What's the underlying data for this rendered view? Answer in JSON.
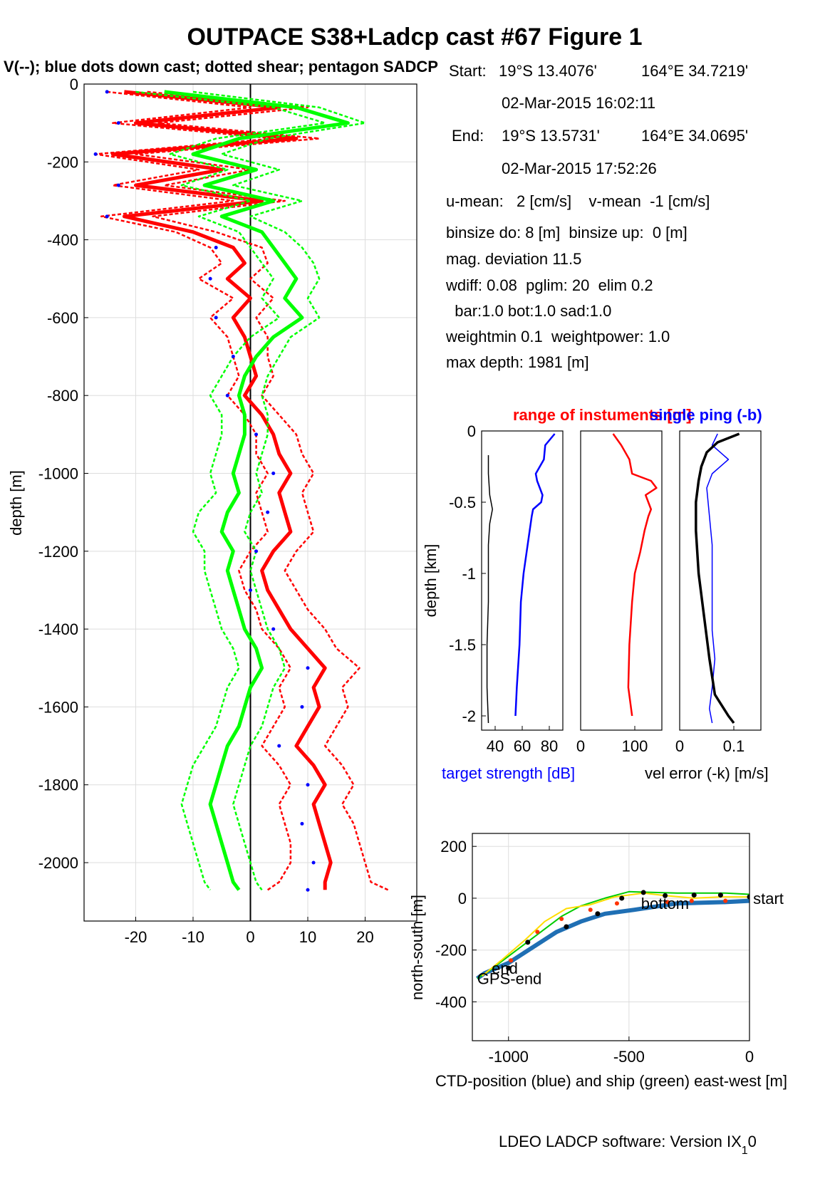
{
  "title": "OUTPACE S38+Ladcp cast #67  Figure 1",
  "subtitle": "V(--); blue dots down cast; dotted shear; pentagon SADCP",
  "info": {
    "start_label": "Start:",
    "start_lat": "19°S 13.4076'",
    "start_lon": "164°E 34.7219'",
    "start_time": "02-Mar-2015 16:02:11",
    "end_label": "End:",
    "end_lat": "19°S 13.5731'",
    "end_lon": "164°E 34.0695'",
    "end_time": "02-Mar-2015 17:52:26",
    "u_mean": "u-mean:   2 [cm/s]    v-mean  -1 [cm/s]",
    "binsize": "binsize do: 8 [m]  binsize up:  0 [m]",
    "mag_dev": "mag. deviation 11.5",
    "wdiff": "wdiff: 0.08  pglim: 20  elim 0.2",
    "bar": "  bar:1.0 bot:1.0 sad:1.0",
    "weight": "weightmin 0.1  weightpower: 1.0",
    "max_depth": "max depth: 1981 [m]"
  },
  "footer": {
    "text": "LDEO LADCP software: Version IX",
    "sub": "1",
    "tail": "0"
  },
  "colors": {
    "u": "#ff0000",
    "v": "#00ff00",
    "blue": "#0000ff",
    "ship": "#00cc00",
    "ctd": "#1f6fb4",
    "yellow": "#ffdd00"
  },
  "chart_data": [
    {
      "type": "line",
      "name": "velocity-profile",
      "ylabel": "depth [m]",
      "xlabel": "",
      "xlim": [
        -29,
        29
      ],
      "ylim": [
        -2150,
        0
      ],
      "xticks": [
        "-20",
        "-10",
        "0",
        "10",
        "20"
      ],
      "xtick_values": [
        -20,
        -10,
        0,
        10,
        20
      ],
      "yticks": [
        "0",
        "-200",
        "-400",
        "-600",
        "-800",
        "-1000",
        "-1200",
        "-1400",
        "-1600",
        "-1800",
        "-2000"
      ],
      "ytick_values": [
        0,
        -200,
        -400,
        -600,
        -800,
        -1000,
        -1200,
        -1400,
        -1600,
        -1800,
        -2000
      ],
      "grid": true,
      "series": [
        {
          "color": "#ff0000",
          "depth": [
            -20,
            -60,
            -100,
            -140,
            -180,
            -220,
            -260,
            -300,
            -340,
            -380,
            -420,
            -460,
            -500,
            -550,
            -600,
            -650,
            -700,
            -750,
            -800,
            -850,
            -900,
            -950,
            -1000,
            -1050,
            -1100,
            -1150,
            -1200,
            -1250,
            -1300,
            -1350,
            -1400,
            -1450,
            -1500,
            -1550,
            -1600,
            -1650,
            -1700,
            -1750,
            -1800,
            -1850,
            -1900,
            -1950,
            -2000,
            -2050,
            -2070
          ],
          "u": [
            -22,
            5,
            -20,
            8,
            -24,
            -5,
            -20,
            2,
            -22,
            -10,
            -3,
            -1,
            -4,
            0,
            -3,
            -1,
            0,
            1,
            -1,
            2,
            4,
            5,
            7,
            5,
            6,
            7,
            4,
            2,
            3,
            5,
            7,
            10,
            13,
            11,
            12,
            10,
            8,
            11,
            13,
            11,
            12,
            13,
            14,
            13,
            13
          ]
        },
        {
          "color": "#ff0000",
          "depth": [
            -20,
            -60,
            -100,
            -140,
            -180,
            -220,
            -260,
            -300,
            -340,
            -380,
            -420,
            -460,
            -500,
            -550,
            -600,
            -650,
            -700,
            -750,
            -800,
            -850,
            -900,
            -950,
            -1000,
            -1050,
            -1100,
            -1150,
            -1200,
            -1250,
            -1300,
            -1350,
            -1400,
            -1450,
            -1500,
            -1550,
            -1600,
            -1650,
            -1700,
            -1750,
            -1800,
            -1850,
            -1900,
            -1950,
            -2000,
            -2050,
            -2070
          ],
          "u": [
            -18,
            10,
            -16,
            12,
            -20,
            0,
            -15,
            6,
            -17,
            -6,
            2,
            3,
            0,
            4,
            1,
            3,
            3,
            4,
            2,
            5,
            8,
            9,
            11,
            9,
            10,
            11,
            8,
            6,
            8,
            10,
            13,
            15,
            19,
            16,
            17,
            15,
            13,
            16,
            18,
            16,
            18,
            19,
            20,
            21,
            24
          ]
        },
        {
          "color": "#ff0000",
          "depth": [
            -20,
            -60,
            -100,
            -140,
            -180,
            -220,
            -260,
            -300,
            -340,
            -380,
            -420,
            -460,
            -500,
            -550,
            -600,
            -650,
            -700,
            -750,
            -800,
            -850,
            -900,
            -950,
            -1000,
            -1050,
            -1100,
            -1150,
            -1200,
            -1250,
            -1300,
            -1350,
            -1400,
            -1450,
            -1500,
            -1550,
            -1600,
            -1650,
            -1700,
            -1750,
            -1800,
            -1850,
            -1900,
            -1950,
            -2000,
            -2050,
            -2070
          ],
          "u": [
            -25,
            0,
            -24,
            4,
            -27,
            -9,
            -24,
            -3,
            -26,
            -13,
            -7,
            -5,
            -9,
            -3,
            -7,
            -4,
            -3,
            -2,
            -4,
            -1,
            1,
            1,
            3,
            1,
            2,
            3,
            0,
            -2,
            -1,
            1,
            2,
            5,
            7,
            5,
            6,
            4,
            2,
            5,
            7,
            5,
            6,
            7,
            7,
            5,
            3
          ]
        },
        {
          "color": "#00ff00",
          "depth": [
            -20,
            -60,
            -100,
            -140,
            -180,
            -220,
            -260,
            -300,
            -340,
            -380,
            -420,
            -460,
            -500,
            -550,
            -600,
            -650,
            -700,
            -750,
            -800,
            -850,
            -900,
            -950,
            -1000,
            -1050,
            -1100,
            -1150,
            -1200,
            -1250,
            -1300,
            -1350,
            -1400,
            -1450,
            -1500,
            -1550,
            -1600,
            -1650,
            -1700,
            -1750,
            -1800,
            -1850,
            -1900,
            -1950,
            -2000,
            -2050,
            -2070
          ],
          "u": [
            -15,
            8,
            17,
            -2,
            -10,
            1,
            -8,
            4,
            -5,
            2,
            4,
            6,
            8,
            6,
            9,
            4,
            1,
            -1,
            -2,
            -1,
            -1,
            -2,
            -3,
            -2,
            -4,
            -5,
            -3,
            -4,
            -3,
            -2,
            -1,
            1,
            2,
            0,
            -1,
            -2,
            -4,
            -5,
            -6,
            -7,
            -6,
            -5,
            -4,
            -3,
            -2
          ]
        },
        {
          "color": "#00ff00",
          "depth": [
            -20,
            -60,
            -100,
            -140,
            -180,
            -220,
            -260,
            -300,
            -340,
            -380,
            -420,
            -460,
            -500,
            -550,
            -600,
            -650,
            -700,
            -750,
            -800,
            -850,
            -900,
            -950,
            -1000,
            -1050,
            -1100,
            -1150,
            -1200,
            -1250,
            -1300,
            -1350,
            -1400,
            -1450,
            -1500,
            -1550,
            -1600,
            -1650,
            -1700,
            -1750,
            -1800,
            -1850,
            -1900,
            -1950,
            -2000,
            -2050,
            -2070
          ],
          "u": [
            -20,
            4,
            13,
            -6,
            -14,
            -4,
            -12,
            0,
            -9,
            -2,
            0,
            2,
            4,
            2,
            5,
            0,
            -3,
            -5,
            -7,
            -5,
            -5,
            -6,
            -7,
            -6,
            -9,
            -10,
            -8,
            -8,
            -7,
            -6,
            -5,
            -3,
            -2,
            -4,
            -5,
            -6,
            -8,
            -10,
            -11,
            -12,
            -11,
            -10,
            -9,
            -8,
            -7
          ]
        },
        {
          "color": "#00ff00",
          "depth": [
            -20,
            -60,
            -100,
            -140,
            -180,
            -220,
            -260,
            -300,
            -340,
            -380,
            -420,
            -460,
            -500,
            -550,
            -600,
            -650,
            -700,
            -750,
            -800,
            -850,
            -900,
            -950,
            -1000,
            -1050,
            -1100,
            -1150,
            -1200,
            -1250,
            -1300,
            -1350,
            -1400,
            -1450,
            -1500,
            -1550,
            -1600,
            -1650,
            -1700,
            -1750,
            -1800,
            -1850,
            -1900,
            -1950,
            -2000,
            -2050,
            -2070
          ],
          "u": [
            -10,
            12,
            20,
            3,
            -5,
            5,
            -3,
            9,
            0,
            6,
            9,
            11,
            12,
            10,
            12,
            7,
            5,
            3,
            2,
            3,
            3,
            2,
            1,
            2,
            0,
            -1,
            1,
            0,
            1,
            2,
            3,
            5,
            6,
            4,
            3,
            2,
            0,
            -1,
            -2,
            -3,
            -2,
            -1,
            0,
            1,
            2
          ]
        }
      ]
    },
    {
      "type": "line",
      "name": "target-strength",
      "title": "range of instuments [m]",
      "ylabel": "depth [km]",
      "xlabel": "target strength [dB]",
      "xlim": [
        30,
        90
      ],
      "ylim": [
        -2.1,
        0
      ],
      "xticks": [
        "40",
        "60",
        "80"
      ],
      "xtick_values": [
        40,
        60,
        80
      ],
      "yticks": [
        "0",
        "-0.5",
        "-1",
        "-1.5",
        "-2"
      ],
      "ytick_values": [
        0,
        -0.5,
        -1,
        -1.5,
        -2
      ],
      "series": [
        {
          "color": "#0000ff",
          "depth": [
            -0.02,
            -0.1,
            -0.2,
            -0.3,
            -0.35,
            -0.4,
            -0.45,
            -0.5,
            -0.55,
            -0.6,
            -0.8,
            -1.0,
            -1.2,
            -1.5,
            -1.8,
            -2.0
          ],
          "x": [
            84,
            77,
            76,
            70,
            71,
            73,
            75,
            74,
            68,
            67,
            64,
            61,
            59,
            58,
            56,
            55
          ]
        },
        {
          "color": "#000000",
          "depth": [
            -0.17,
            -0.3,
            -0.45,
            -0.55,
            -0.65,
            -0.8,
            -1.0,
            -1.2,
            -1.5,
            -1.8,
            -2.05
          ],
          "x": [
            35,
            35,
            36,
            38,
            36,
            35,
            35,
            35,
            34,
            34,
            35
          ]
        }
      ]
    },
    {
      "type": "line",
      "name": "range",
      "xlim": [
        0,
        150
      ],
      "ylim": [
        -2.1,
        0
      ],
      "xticks": [
        "0",
        "100"
      ],
      "xtick_values": [
        0,
        100
      ],
      "series": [
        {
          "color": "#ff0000",
          "depth": [
            -0.02,
            -0.1,
            -0.2,
            -0.3,
            -0.35,
            -0.4,
            -0.45,
            -0.55,
            -0.6,
            -0.7,
            -0.85,
            -1.0,
            -1.2,
            -1.5,
            -1.8,
            -2.0
          ],
          "x": [
            60,
            75,
            90,
            95,
            130,
            140,
            120,
            130,
            125,
            118,
            110,
            100,
            95,
            90,
            88,
            95
          ]
        }
      ]
    },
    {
      "type": "line",
      "name": "velocity-error",
      "title": "single ping (-b)",
      "xlabel": "vel error (-k) [m/s]",
      "xlim": [
        0,
        0.15
      ],
      "ylim": [
        -2.1,
        0
      ],
      "xticks": [
        "0",
        "0.1"
      ],
      "xtick_values": [
        0,
        0.1
      ],
      "series": [
        {
          "color": "#0000ff",
          "depth": [
            -0.02,
            -0.1,
            -0.2,
            -0.3,
            -0.4,
            -0.6,
            -0.8,
            -1.0,
            -1.2,
            -1.4,
            -1.6,
            -1.8,
            -1.95,
            -2.05
          ],
          "x": [
            0.07,
            0.06,
            0.09,
            0.06,
            0.05,
            0.055,
            0.06,
            0.06,
            0.06,
            0.06,
            0.065,
            0.06,
            0.055,
            0.06
          ]
        },
        {
          "color": "#000000",
          "depth": [
            -0.02,
            -0.08,
            -0.15,
            -0.25,
            -0.35,
            -0.5,
            -0.7,
            -1.0,
            -1.3,
            -1.6,
            -1.85,
            -2.0,
            -2.05
          ],
          "x": [
            0.11,
            0.07,
            0.05,
            0.04,
            0.035,
            0.03,
            0.03,
            0.035,
            0.045,
            0.055,
            0.065,
            0.09,
            0.1
          ]
        }
      ]
    },
    {
      "type": "line",
      "name": "position",
      "xlabel": "CTD-position (blue) and ship (green) east-west [m]",
      "ylabel": "north-south [m]",
      "xlim": [
        -1150,
        0
      ],
      "ylim": [
        -550,
        250
      ],
      "xticks": [
        "-1000",
        "-500",
        "0"
      ],
      "xtick_values": [
        -1000,
        -500,
        0
      ],
      "yticks": [
        "200",
        "0",
        "-200",
        "-400"
      ],
      "ytick_values": [
        200,
        0,
        -200,
        -400
      ],
      "grid": true,
      "annotations": [
        {
          "text": "start",
          "x": 15,
          "y": 0
        },
        {
          "text": "bottom",
          "x": -450,
          "y": -20
        },
        {
          "text": "end",
          "x": -1070,
          "y": -270
        },
        {
          "text": "GPS-end",
          "x": -1130,
          "y": -310
        }
      ],
      "series": [
        {
          "color": "#1f6fb4",
          "x": [
            0,
            -100,
            -300,
            -480,
            -600,
            -700,
            -800,
            -900,
            -1000,
            -1100,
            -1130
          ],
          "y": [
            -10,
            -15,
            -20,
            -45,
            -60,
            -90,
            -130,
            -190,
            -250,
            -290,
            -310
          ]
        },
        {
          "color": "#00cc00",
          "x": [
            0,
            -100,
            -300,
            -500,
            -600,
            -700,
            -780,
            -880,
            -980,
            -1080,
            -1130
          ],
          "y": [
            15,
            20,
            20,
            25,
            0,
            -30,
            -70,
            -140,
            -210,
            -280,
            -310
          ]
        },
        {
          "color": "#ffdd00",
          "x": [
            0,
            -120,
            -230,
            -350,
            -440,
            -560,
            -660,
            -760,
            -850,
            -930,
            -1030,
            -1110
          ],
          "y": [
            5,
            5,
            0,
            10,
            20,
            5,
            -25,
            -40,
            -90,
            -160,
            -240,
            -300
          ]
        }
      ],
      "black_dots": {
        "x": [
          0,
          -120,
          -230,
          -350,
          -440,
          -530,
          -630,
          -760,
          -920,
          -1000
        ],
        "y": [
          5,
          12,
          12,
          10,
          22,
          0,
          -60,
          -110,
          -170,
          -270
        ]
      },
      "red_dots": {
        "x": [
          -100,
          -240,
          -340,
          -550,
          -660,
          -780,
          -880,
          -990
        ],
        "y": [
          -10,
          -10,
          -15,
          -20,
          -45,
          -80,
          -130,
          -240
        ]
      }
    }
  ]
}
